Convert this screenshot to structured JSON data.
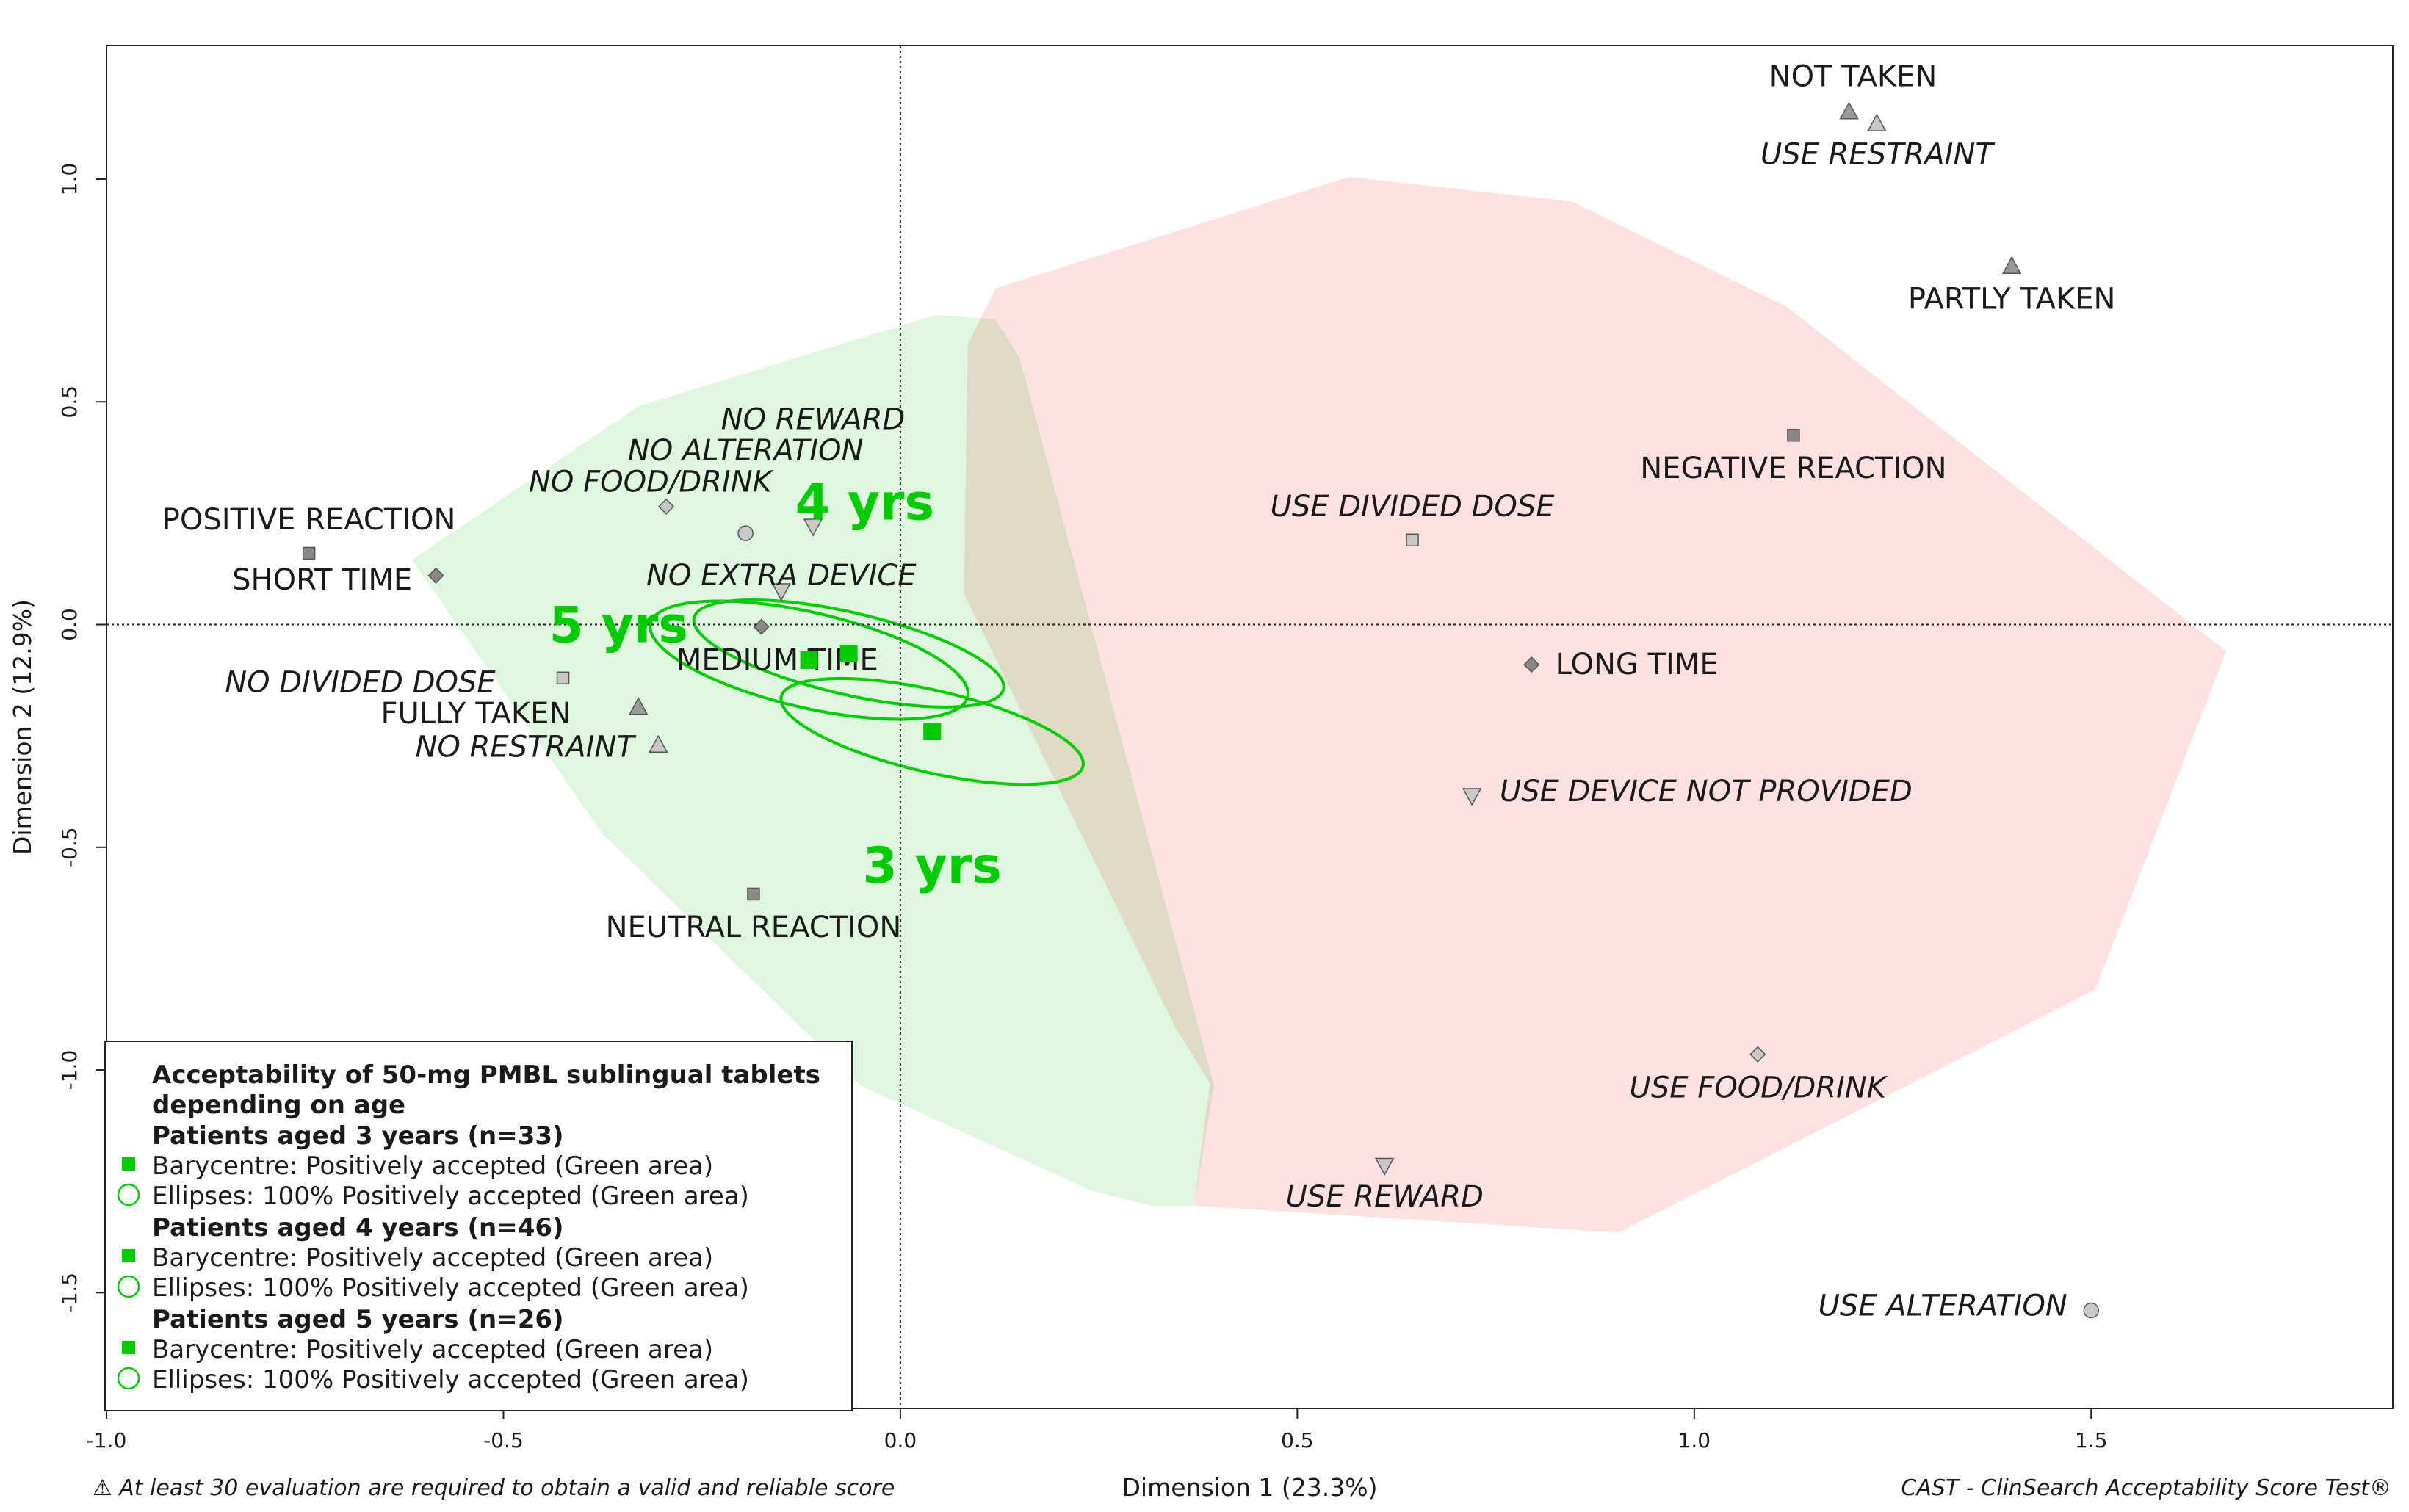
{
  "chart_data": {
    "type": "scatter",
    "xlabel": "Dimension 1 (23.3%)",
    "ylabel": "Dimension 2 (12.9%)",
    "xlim": [
      -1.0,
      1.88
    ],
    "ylim": [
      -1.76,
      1.3
    ],
    "xticks": [
      -1.0,
      -0.5,
      0.0,
      0.5,
      1.0,
      1.5
    ],
    "xtick_labels": [
      "-1.0",
      "-0.5",
      "0.0",
      "0.5",
      "1.0",
      "1.5"
    ],
    "yticks": [
      -1.5,
      -1.0,
      -0.5,
      0.0,
      0.5,
      1.0
    ],
    "ytick_labels": [
      "-1.5",
      "-1.0",
      "-0.5",
      "0.0",
      "0.5",
      "1.0"
    ],
    "areas": [
      {
        "name": "Negatively accepted (Red area)",
        "color": "#ffc9c9",
        "polygon": [
          [
            0.12,
            0.755
          ],
          [
            0.565,
            1.005
          ],
          [
            0.845,
            0.95
          ],
          [
            1.115,
            0.715
          ],
          [
            1.67,
            -0.06
          ],
          [
            1.505,
            -0.82
          ],
          [
            0.905,
            -1.365
          ],
          [
            0.37,
            -1.305
          ],
          [
            0.39,
            -1.03
          ],
          [
            0.345,
            -0.9
          ],
          [
            0.08,
            0.07
          ],
          [
            0.085,
            0.63
          ]
        ]
      },
      {
        "name": "Positively accepted (Green area)",
        "color": "#c9f2c9",
        "polygon": [
          [
            -0.615,
            0.145
          ],
          [
            -0.33,
            0.49
          ],
          [
            0.045,
            0.695
          ],
          [
            0.12,
            0.685
          ],
          [
            0.15,
            0.6
          ],
          [
            0.375,
            -0.9
          ],
          [
            0.395,
            -1.035
          ],
          [
            0.37,
            -1.305
          ],
          [
            0.315,
            -1.305
          ],
          [
            0.24,
            -1.27
          ],
          [
            -0.05,
            -1.035
          ],
          [
            -0.375,
            -0.47
          ]
        ]
      }
    ],
    "points": [
      {
        "label": "NOT TAKEN",
        "italic": false,
        "x": 1.195,
        "y": 1.152,
        "shape": "triangle-up",
        "fill": "#999999",
        "lx": 1.2,
        "ly": 1.23
      },
      {
        "label": "USE RESTRAINT",
        "italic": true,
        "x": 1.23,
        "y": 1.125,
        "shape": "triangle-up",
        "fill": "#c8c8c8",
        "lx": 1.23,
        "ly": 1.055
      },
      {
        "label": "PARTLY TAKEN",
        "italic": false,
        "x": 1.4,
        "y": 0.805,
        "shape": "triangle-up",
        "fill": "#999999",
        "lx": 1.4,
        "ly": 0.73
      },
      {
        "label": "NEGATIVE REACTION",
        "italic": false,
        "x": 1.125,
        "y": 0.425,
        "shape": "square",
        "fill": "#888888",
        "lx": 1.125,
        "ly": 0.35
      },
      {
        "label": "USE DIVIDED DOSE",
        "italic": true,
        "x": 0.645,
        "y": 0.19,
        "shape": "square",
        "fill": "#c8c8c8",
        "lx": 0.645,
        "ly": 0.265
      },
      {
        "label": "LONG TIME",
        "italic": false,
        "x": 0.795,
        "y": -0.09,
        "shape": "diamond",
        "fill": "#888888",
        "lx": 0.825,
        "ly": -0.09,
        "anchor": "start"
      },
      {
        "label": "USE DEVICE NOT PROVIDED",
        "italic": true,
        "x": 0.72,
        "y": -0.385,
        "shape": "triangle-down",
        "fill": "#c8c8c8",
        "lx": 0.755,
        "ly": -0.375,
        "anchor": "start"
      },
      {
        "label": "USE FOOD/DRINK",
        "italic": true,
        "x": 1.08,
        "y": -0.965,
        "shape": "diamond",
        "fill": "#c8c8c8",
        "lx": 1.08,
        "ly": -1.04
      },
      {
        "label": "USE REWARD",
        "italic": true,
        "x": 0.61,
        "y": -1.215,
        "shape": "triangle-down",
        "fill": "#c8c8c8",
        "lx": 0.61,
        "ly": -1.285
      },
      {
        "label": "USE ALTERATION",
        "italic": true,
        "x": 1.5,
        "y": -1.54,
        "shape": "circle",
        "fill": "#c8c8c8",
        "lx": 1.47,
        "ly": -1.53,
        "anchor": "end"
      },
      {
        "label": "POSITIVE REACTION",
        "italic": false,
        "x": -0.745,
        "y": 0.16,
        "shape": "square",
        "fill": "#888888",
        "lx": -0.745,
        "ly": 0.235
      },
      {
        "label": "SHORT TIME",
        "italic": false,
        "x": -0.585,
        "y": 0.11,
        "shape": "diamond",
        "fill": "#888888",
        "lx": -0.615,
        "ly": 0.1,
        "anchor": "end"
      },
      {
        "label": "NO FOOD/DRINK",
        "italic": true,
        "x": -0.295,
        "y": 0.265,
        "shape": "diamond",
        "fill": "#c8c8c8",
        "lx": -0.315,
        "ly": 0.32
      },
      {
        "label": "NO ALTERATION",
        "italic": true,
        "x": -0.195,
        "y": 0.205,
        "shape": "circle",
        "fill": "#c8c8c8",
        "lx": -0.195,
        "ly": 0.39
      },
      {
        "label": "NO REWARD",
        "italic": true,
        "x": -0.11,
        "y": 0.22,
        "shape": "triangle-down",
        "fill": "#c8c8c8",
        "lx": -0.11,
        "ly": 0.46
      },
      {
        "label": "NO EXTRA DEVICE",
        "italic": true,
        "x": -0.15,
        "y": 0.075,
        "shape": "triangle-down",
        "fill": "#c8c8c8",
        "lx": -0.15,
        "ly": 0.11
      },
      {
        "label": "MEDIUM TIME",
        "italic": false,
        "x": -0.175,
        "y": -0.005,
        "shape": "diamond",
        "fill": "#888888",
        "lx": -0.155,
        "ly": -0.08
      },
      {
        "label": "NO DIVIDED DOSE",
        "italic": true,
        "x": -0.425,
        "y": -0.12,
        "shape": "square",
        "fill": "#c8c8c8",
        "lx": -0.51,
        "ly": -0.13,
        "anchor": "end"
      },
      {
        "label": "FULLY TAKEN",
        "italic": false,
        "x": -0.33,
        "y": -0.185,
        "shape": "triangle-up",
        "fill": "#999999",
        "lx": -0.415,
        "ly": -0.2,
        "anchor": "end"
      },
      {
        "label": "NO RESTRAINT",
        "italic": true,
        "x": -0.305,
        "y": -0.27,
        "shape": "triangle-up",
        "fill": "#c8c8c8",
        "lx": -0.335,
        "ly": -0.275,
        "anchor": "end"
      },
      {
        "label": "NEUTRAL REACTION",
        "italic": false,
        "x": -0.185,
        "y": -0.605,
        "shape": "square",
        "fill": "#888888",
        "lx": -0.185,
        "ly": -0.68
      }
    ],
    "barycentres": [
      {
        "age": "3 yrs",
        "x": 0.04,
        "y": -0.24,
        "lx": 0.04,
        "ly": -0.54
      },
      {
        "age": "4 yrs",
        "x": -0.065,
        "y": -0.065,
        "lx": -0.045,
        "ly": 0.275
      },
      {
        "age": "5 yrs",
        "x": -0.115,
        "y": -0.08,
        "lx": -0.355,
        "ly": 0.0
      }
    ],
    "ellipses": [
      {
        "age": "3 yrs",
        "cx": 0.04,
        "cy": -0.24,
        "rx": 0.195,
        "ry": 0.092,
        "angle": -13
      },
      {
        "age": "4 yrs",
        "cx": -0.065,
        "cy": -0.065,
        "rx": 0.2,
        "ry": 0.092,
        "angle": -13
      },
      {
        "age": "5 yrs",
        "cx": -0.115,
        "cy": -0.08,
        "rx": 0.205,
        "ry": 0.107,
        "angle": -13
      }
    ],
    "series_color": "#00cc00",
    "legend": {
      "position": "bottom-left",
      "title_line1": "Acceptability of 50-mg PMBL sublingual tablets",
      "title_line2": "depending on age",
      "groups": [
        {
          "header": "Patients aged 3 years (n=33)",
          "barycentre": "Barycentre: Positively accepted (Green area)",
          "ellipses": "Ellipses: 100% Positively accepted (Green area)"
        },
        {
          "header": "Patients aged 4 years (n=46)",
          "barycentre": "Barycentre: Positively accepted (Green area)",
          "ellipses": "Ellipses: 100% Positively accepted (Green area)"
        },
        {
          "header": "Patients aged 5 years (n=26)",
          "barycentre": "Barycentre: Positively accepted (Green area)",
          "ellipses": "Ellipses: 100% Positively accepted (Green area)"
        }
      ]
    }
  },
  "footer": {
    "warning": "⚠ At least 30 evaluation are required to obtain a valid and reliable score",
    "credit": "CAST - ClinSearch Acceptability Score Test®"
  }
}
